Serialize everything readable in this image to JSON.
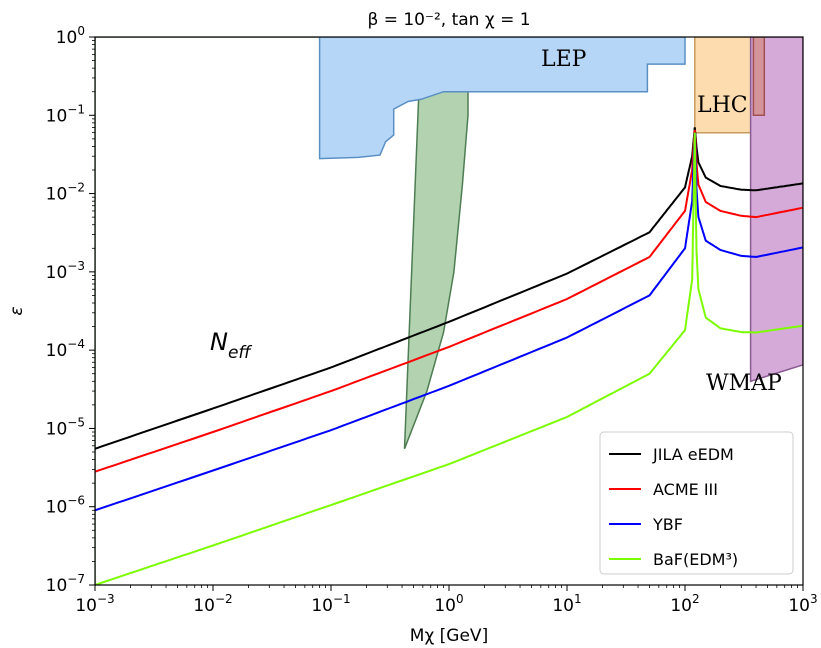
{
  "chart_data": {
    "type": "line",
    "title": "β = 10⁻², tan χ = 1",
    "xlabel": "Mχ [GeV]",
    "ylabel": "ε",
    "x_scale": "log",
    "y_scale": "log",
    "xlim": [
      0.001,
      1000
    ],
    "ylim": [
      1e-07,
      1
    ],
    "x_ticks": [
      {
        "base": "10",
        "exp": "−3"
      },
      {
        "base": "10",
        "exp": "−2"
      },
      {
        "base": "10",
        "exp": "−1"
      },
      {
        "base": "10",
        "exp": "0"
      },
      {
        "base": "10",
        "exp": "1"
      },
      {
        "base": "10",
        "exp": "2"
      },
      {
        "base": "10",
        "exp": "3"
      }
    ],
    "y_ticks": [
      {
        "base": "10",
        "exp": "−7"
      },
      {
        "base": "10",
        "exp": "−6"
      },
      {
        "base": "10",
        "exp": "−5"
      },
      {
        "base": "10",
        "exp": "−4"
      },
      {
        "base": "10",
        "exp": "−3"
      },
      {
        "base": "10",
        "exp": "−2"
      },
      {
        "base": "10",
        "exp": "−1"
      },
      {
        "base": "10",
        "exp": "0"
      }
    ],
    "series": [
      {
        "name": "JILA eEDM",
        "color": "#000000",
        "x": [
          0.001,
          0.01,
          0.1,
          1,
          10,
          50,
          100,
          115,
          121,
          125,
          130,
          150,
          200,
          300,
          400,
          1000
        ],
        "y": [
          5.5e-06,
          1.8e-05,
          6e-05,
          0.00023,
          0.00095,
          0.0032,
          0.012,
          0.03,
          0.07,
          0.04,
          0.025,
          0.016,
          0.0125,
          0.0112,
          0.011,
          0.0135
        ]
      },
      {
        "name": "ACME III",
        "color": "#ff0000",
        "x": [
          0.001,
          0.01,
          0.1,
          1,
          10,
          50,
          100,
          115,
          121,
          125,
          130,
          150,
          200,
          300,
          400,
          1000
        ],
        "y": [
          2.8e-06,
          9e-06,
          3e-05,
          0.00011,
          0.00045,
          0.00155,
          0.006,
          0.02,
          0.065,
          0.025,
          0.013,
          0.0078,
          0.006,
          0.0052,
          0.005,
          0.0066
        ]
      },
      {
        "name": "YBF",
        "color": "#0000ff",
        "x": [
          0.001,
          0.01,
          0.1,
          1,
          10,
          50,
          100,
          115,
          121,
          125,
          130,
          150,
          200,
          300,
          400,
          1000
        ],
        "y": [
          9e-07,
          2.9e-06,
          9.5e-06,
          3.5e-05,
          0.000145,
          0.0005,
          0.002,
          0.008,
          0.06,
          0.012,
          0.005,
          0.0025,
          0.0019,
          0.0016,
          0.00155,
          0.00205
        ]
      },
      {
        "name": "BaF(EDM³)",
        "color": "#7cfc00",
        "x": [
          0.001,
          0.01,
          0.1,
          1,
          10,
          50,
          100,
          115,
          121,
          125,
          130,
          150,
          200,
          300,
          400,
          1000
        ],
        "y": [
          1e-07,
          3.2e-07,
          1.05e-06,
          3.5e-06,
          1.4e-05,
          5e-05,
          0.00018,
          0.0008,
          0.06,
          0.002,
          0.0006,
          0.00026,
          0.00019,
          0.00017,
          0.000168,
          0.000205
        ]
      }
    ],
    "regions": [
      {
        "name": "N_eff",
        "label": "Neff",
        "label_main": "N",
        "label_sub": "eff",
        "fill": "#b2d2b0",
        "stroke": "#4e7d52",
        "x": [
          0.001,
          0.001,
          0.38,
          0.6,
          0.58,
          0.42,
          0.65,
          0.9,
          1.1,
          1.3,
          1.45,
          1.45,
          0.001
        ],
        "y": [
          1e-07,
          1,
          1,
          1,
          1,
          5.5e-06,
          3e-05,
          0.00017,
          0.001,
          0.013,
          0.1,
          1,
          1
        ]
      },
      {
        "name": "LEP",
        "label": "LEP",
        "fill": "#b6d6f7",
        "stroke": "#5a8fc4",
        "x": [
          0.08,
          0.08,
          0.17,
          0.26,
          0.29,
          0.34,
          0.34,
          0.45,
          0.58,
          0.9,
          1.1,
          48,
          48,
          100,
          100,
          0.08
        ],
        "y": [
          1,
          0.028,
          0.029,
          0.031,
          0.046,
          0.056,
          0.12,
          0.15,
          0.16,
          0.2,
          0.2,
          0.2,
          0.45,
          0.45,
          1,
          1
        ]
      },
      {
        "name": "LHC",
        "label": "LHC",
        "fill": "#fddcb0",
        "stroke": "#c89a5e",
        "x": [
          121,
          121,
          125,
          380,
          380,
          125
        ],
        "y": [
          0.06,
          1,
          1,
          1,
          0.06,
          0.06
        ]
      },
      {
        "name": "WMAP",
        "label": "WMAP",
        "fill": "#d5aad8",
        "stroke": "#8a5a93",
        "x": [
          360,
          360,
          1000,
          1000
        ],
        "y": [
          4e-05,
          1,
          1,
          6.5e-05
        ]
      },
      {
        "name": "red-patch",
        "label": "",
        "fill": "#d3959a",
        "stroke": "#a05050",
        "x": [
          380,
          380,
          470,
          470
        ],
        "y": [
          0.1,
          1,
          1,
          0.1
        ]
      }
    ],
    "legend_placement": "lower-right",
    "grid": false
  }
}
